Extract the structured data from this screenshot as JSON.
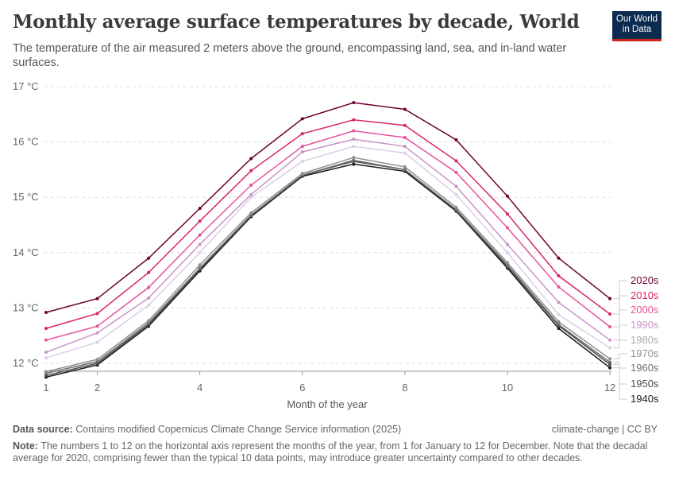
{
  "header": {
    "title": "Monthly average surface temperatures by decade, World",
    "subtitle": "The temperature of the air measured 2 meters above the ground, encompassing land, sea, and in-land water surfaces.",
    "logo": "Our World in Data"
  },
  "footer": {
    "source_label": "Data source:",
    "source": "Contains modified Copernicus Climate Change Service information (2025)",
    "license": "climate-change | CC BY",
    "note_label": "Note:",
    "note": "The numbers 1 to 12 on the horizontal axis represent the months of the year, from 1 for January to 12 for December. Note that the decadal average for 2020, comprising fewer than the typical 10 data points, may introduce greater uncertainty compared to other decades."
  },
  "chart_data": {
    "type": "line",
    "xlabel": "Month of the year",
    "ylabel": "",
    "xlim": [
      1,
      12
    ],
    "ylim": [
      11.7,
      17
    ],
    "x_ticks": [
      "1",
      "2",
      "4",
      "6",
      "8",
      "10",
      "12"
    ],
    "y_ticks": [
      "12 °C",
      "13 °C",
      "14 °C",
      "15 °C",
      "16 °C",
      "17 °C"
    ],
    "grid": "horizontal dashed",
    "legend": "right (line end labels)",
    "x": [
      1,
      2,
      3,
      4,
      5,
      6,
      7,
      8,
      9,
      10,
      11,
      12
    ],
    "series": [
      {
        "name": "1940s",
        "color": "#1a1a1a",
        "values": [
          11.75,
          11.97,
          12.67,
          13.67,
          14.65,
          15.38,
          15.6,
          15.47,
          14.75,
          13.72,
          12.63,
          11.92
        ]
      },
      {
        "name": "1950s",
        "color": "#4d4d4d",
        "values": [
          11.78,
          12.0,
          12.7,
          13.7,
          14.67,
          15.4,
          15.65,
          15.5,
          14.77,
          13.75,
          12.68,
          11.98
        ]
      },
      {
        "name": "1960s",
        "color": "#6e6e6e",
        "values": [
          11.82,
          12.03,
          12.73,
          13.72,
          14.68,
          15.4,
          15.67,
          15.5,
          14.78,
          13.78,
          12.7,
          12.02
        ]
      },
      {
        "name": "1970s",
        "color": "#8f8f8f",
        "values": [
          11.85,
          12.07,
          12.77,
          13.78,
          14.72,
          15.43,
          15.72,
          15.55,
          14.82,
          13.82,
          12.75,
          12.08
        ]
      },
      {
        "name": "1980s",
        "color": "#d8d0e6",
        "values": [
          12.1,
          12.38,
          13.05,
          14.0,
          15.0,
          15.65,
          15.92,
          15.8,
          15.05,
          14.0,
          12.88,
          12.28
        ]
      },
      {
        "name": "1990s",
        "color": "#c994c7",
        "values": [
          12.2,
          12.55,
          13.18,
          14.15,
          15.05,
          15.82,
          16.05,
          15.92,
          15.2,
          14.15,
          13.1,
          12.42
        ]
      },
      {
        "name": "2000s",
        "color": "#e7539c",
        "values": [
          12.42,
          12.67,
          13.37,
          14.32,
          15.22,
          15.92,
          16.2,
          16.08,
          15.45,
          14.45,
          13.38,
          12.66
        ]
      },
      {
        "name": "2010s",
        "color": "#d9236b",
        "values": [
          12.63,
          12.9,
          13.64,
          14.57,
          15.48,
          16.15,
          16.4,
          16.3,
          15.66,
          14.7,
          13.58,
          12.89
        ]
      },
      {
        "name": "2020s",
        "color": "#6b0033",
        "values": [
          12.92,
          13.17,
          13.9,
          14.8,
          15.7,
          16.42,
          16.71,
          16.59,
          16.04,
          15.02,
          13.9,
          13.17
        ]
      }
    ]
  }
}
